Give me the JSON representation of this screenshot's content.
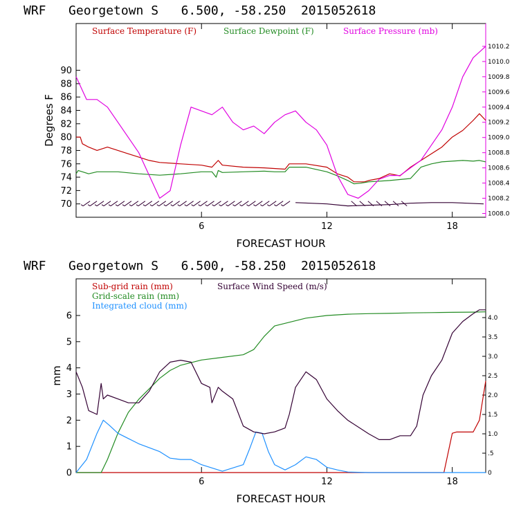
{
  "charts": [
    {
      "title": "WRF   Georgetown S   6.500, -58.250  2015052618",
      "xlabel": "FORECAST HOUR",
      "ylabel": "Degrees F",
      "legend": [
        {
          "label": "Surface Temperature (F)",
          "color": "#c00000"
        },
        {
          "label": "Surface Dewpoint (F)",
          "color": "#228b22"
        },
        {
          "label": "Surface Pressure (mb)",
          "color": "#e000e0"
        }
      ]
    },
    {
      "title": "WRF   Georgetown S   6.500, -58.250  2015052618",
      "xlabel": "FORECAST HOUR",
      "ylabel": "mm",
      "legend": [
        {
          "label": "Sub-grid rain (mm)",
          "color": "#c00000"
        },
        {
          "label": "Surface Wind Speed (m/s)",
          "color": "#330033"
        },
        {
          "label": "Grid-scale rain (mm)",
          "color": "#228b22"
        },
        {
          "label": "Integrated cloud (mm)",
          "color": "#1e90ff"
        }
      ]
    }
  ],
  "chart_data": [
    {
      "type": "line",
      "title": "WRF   Georgetown S   6.500, -58.250  2015052618",
      "xlabel": "FORECAST HOUR",
      "ylabel": "Degrees F",
      "xlim": [
        0,
        19.6
      ],
      "ylim": [
        68,
        97
      ],
      "y2lim": [
        1007.95,
        1010.5
      ],
      "xticks": [
        "6",
        "12",
        "18"
      ],
      "xtick_values": [
        6,
        12,
        18
      ],
      "yticks": [
        "70",
        "72",
        "74",
        "76",
        "78",
        "80",
        "82",
        "84",
        "86",
        "88",
        "90"
      ],
      "ytick_values": [
        70,
        72,
        74,
        76,
        78,
        80,
        82,
        84,
        86,
        88,
        90
      ],
      "y2ticks": [
        "1008.0",
        "1008.2",
        "1008.4",
        "1008.6",
        "1008.8",
        "1009.0",
        "1009.2",
        "1009.4",
        "1009.6",
        "1009.8",
        "1010.0",
        "1010.2"
      ],
      "y2tick_values": [
        1008.0,
        1008.2,
        1008.4,
        1008.6,
        1008.8,
        1009.0,
        1009.2,
        1009.4,
        1009.6,
        1009.8,
        1010.0,
        1010.2
      ],
      "series": [
        {
          "name": "Surface Temperature (F)",
          "color": "#c00000",
          "axis": "left",
          "x": [
            0,
            0.2,
            0.3,
            0.6,
            1,
            1.5,
            2,
            2.5,
            3,
            3.5,
            4,
            5,
            6,
            6.5,
            6.8,
            7,
            8,
            9,
            10,
            10.2,
            11,
            12,
            12.5,
            13,
            13.3,
            13.8,
            14,
            14.5,
            15,
            15.5,
            16,
            16.5,
            17,
            17.5,
            18,
            18.5,
            19,
            19.3,
            19.6
          ],
          "y": [
            80,
            80,
            79,
            78.5,
            78,
            78.5,
            78,
            77.5,
            77,
            76.5,
            76.2,
            76,
            75.8,
            75.5,
            76.5,
            75.8,
            75.5,
            75.4,
            75.2,
            76,
            76,
            75.5,
            74.5,
            74,
            73.3,
            73.3,
            73.5,
            73.8,
            74.5,
            74.2,
            75.5,
            76.5,
            77.5,
            78.5,
            80,
            81,
            82.5,
            83.5,
            82.5
          ]
        },
        {
          "name": "Surface Dewpoint (F)",
          "color": "#228b22",
          "axis": "left",
          "x": [
            0,
            0.1,
            0.3,
            0.6,
            1,
            2,
            3,
            4,
            5,
            6,
            6.5,
            6.7,
            6.8,
            7,
            8,
            9,
            9.5,
            10,
            10.2,
            11,
            12,
            12.5,
            13,
            13.3,
            13.6,
            14,
            15,
            16,
            16.5,
            17,
            17.5,
            18,
            18.5,
            19,
            19.3,
            19.6
          ],
          "y": [
            74.5,
            75,
            74.8,
            74.5,
            74.8,
            74.8,
            74.5,
            74.3,
            74.5,
            74.8,
            74.8,
            74,
            75,
            74.7,
            74.8,
            74.9,
            74.8,
            74.8,
            75.5,
            75.5,
            74.8,
            74.2,
            73.5,
            73,
            73.1,
            73.3,
            73.5,
            73.8,
            75.5,
            76,
            76.3,
            76.4,
            76.5,
            76.4,
            76.5,
            76.3
          ]
        },
        {
          "name": "Surface Pressure (mb)",
          "color": "#e000e0",
          "axis": "right",
          "x": [
            0,
            0.5,
            1,
            1.5,
            2,
            2.5,
            3,
            3.5,
            4,
            4.5,
            5,
            5.5,
            6,
            6.5,
            7,
            7.5,
            8,
            8.5,
            9,
            9.5,
            10,
            10.5,
            11,
            11.5,
            12,
            12.5,
            13,
            13.5,
            14,
            14.5,
            15,
            15.5,
            16,
            16.5,
            17,
            17.5,
            18,
            18.5,
            19,
            19.6
          ],
          "y": [
            1009.8,
            1009.5,
            1009.5,
            1009.4,
            1009.2,
            1009.0,
            1008.8,
            1008.5,
            1008.2,
            1008.3,
            1008.9,
            1009.4,
            1009.35,
            1009.3,
            1009.4,
            1009.2,
            1009.1,
            1009.15,
            1009.05,
            1009.2,
            1009.3,
            1009.35,
            1009.2,
            1009.1,
            1008.9,
            1008.5,
            1008.25,
            1008.2,
            1008.3,
            1008.45,
            1008.5,
            1008.5,
            1008.6,
            1008.7,
            1008.9,
            1009.1,
            1009.4,
            1009.8,
            1010.05,
            1010.2
          ]
        }
      ]
    },
    {
      "type": "line",
      "title": "WRF   Georgetown S   6.500, -58.250  2015052618",
      "xlabel": "FORECAST HOUR",
      "ylabel": "mm",
      "xlim": [
        0,
        19.6
      ],
      "ylim": [
        0,
        7.4
      ],
      "y2lim": [
        0,
        5.0
      ],
      "xticks": [
        "6",
        "12",
        "18"
      ],
      "xtick_values": [
        6,
        12,
        18
      ],
      "yticks": [
        "0",
        "1",
        "2",
        "3",
        "4",
        "5",
        "6"
      ],
      "ytick_values": [
        0,
        1,
        2,
        3,
        4,
        5,
        6
      ],
      "y2ticks": [
        "0",
        ".5",
        "1.0",
        "1.5",
        "2.0",
        "2.5",
        "3.0",
        "3.5",
        "4.0"
      ],
      "y2tick_values": [
        0,
        0.5,
        1.0,
        1.5,
        2.0,
        2.5,
        3.0,
        3.5,
        4.0
      ],
      "series": [
        {
          "name": "Sub-grid rain (mm)",
          "color": "#c00000",
          "axis": "left",
          "x": [
            0,
            17.6,
            18.0,
            18.2,
            19.0,
            19.3,
            19.6
          ],
          "y": [
            0,
            0,
            1.5,
            1.55,
            1.55,
            2.0,
            3.5
          ]
        },
        {
          "name": "Grid-scale rain (mm)",
          "color": "#228b22",
          "axis": "left",
          "x": [
            0,
            1.2,
            1.5,
            2,
            2.5,
            3,
            3.5,
            4,
            4.5,
            5,
            6,
            7,
            8,
            8.5,
            9,
            9.5,
            10,
            11,
            12,
            13,
            14,
            15,
            16,
            17,
            18,
            19,
            19.6
          ],
          "y": [
            0,
            0,
            0.5,
            1.5,
            2.3,
            2.8,
            3.2,
            3.6,
            3.9,
            4.1,
            4.3,
            4.4,
            4.5,
            4.7,
            5.2,
            5.6,
            5.7,
            5.9,
            6.0,
            6.05,
            6.07,
            6.08,
            6.1,
            6.11,
            6.12,
            6.13,
            6.14
          ]
        },
        {
          "name": "Integrated cloud (mm)",
          "color": "#1e90ff",
          "axis": "left",
          "x": [
            0,
            0.5,
            1,
            1.3,
            1.6,
            2,
            2.5,
            3,
            3.5,
            4,
            4.5,
            5,
            5.5,
            6,
            7,
            8,
            8.3,
            8.6,
            8.9,
            9.2,
            9.5,
            10,
            10.5,
            11,
            11.5,
            12,
            12.5,
            13,
            14,
            16,
            19.6
          ],
          "y": [
            0,
            0.5,
            1.5,
            2.0,
            1.8,
            1.5,
            1.3,
            1.1,
            0.95,
            0.8,
            0.55,
            0.5,
            0.5,
            0.3,
            0.05,
            0.3,
            0.9,
            1.55,
            1.5,
            0.8,
            0.3,
            0.1,
            0.3,
            0.6,
            0.5,
            0.2,
            0.1,
            0.02,
            0,
            0,
            0
          ]
        },
        {
          "name": "Surface Wind Speed (m/s)",
          "color": "#330033",
          "axis": "right",
          "x": [
            0,
            0.3,
            0.6,
            1,
            1.2,
            1.3,
            1.5,
            2,
            2.5,
            3,
            3.5,
            4,
            4.5,
            5,
            5.5,
            6,
            6.4,
            6.5,
            6.8,
            7,
            7.5,
            8,
            8.5,
            9,
            9.5,
            10,
            10.2,
            10.5,
            11,
            11.5,
            12,
            12.5,
            13,
            14,
            14.5,
            15,
            15.5,
            16,
            16.3,
            16.6,
            17,
            17.5,
            18,
            18.5,
            19,
            19.3,
            19.6
          ],
          "y": [
            2.6,
            2.2,
            1.6,
            1.5,
            2.3,
            1.9,
            2.0,
            1.9,
            1.8,
            1.8,
            2.1,
            2.6,
            2.85,
            2.9,
            2.85,
            2.3,
            2.2,
            1.8,
            2.2,
            2.1,
            1.9,
            1.2,
            1.05,
            1.0,
            1.05,
            1.15,
            1.5,
            2.2,
            2.6,
            2.4,
            1.9,
            1.6,
            1.35,
            1.0,
            0.85,
            0.85,
            0.95,
            0.95,
            1.2,
            2.0,
            2.5,
            2.9,
            3.6,
            3.9,
            4.1,
            4.2,
            4.2
          ]
        }
      ]
    }
  ]
}
